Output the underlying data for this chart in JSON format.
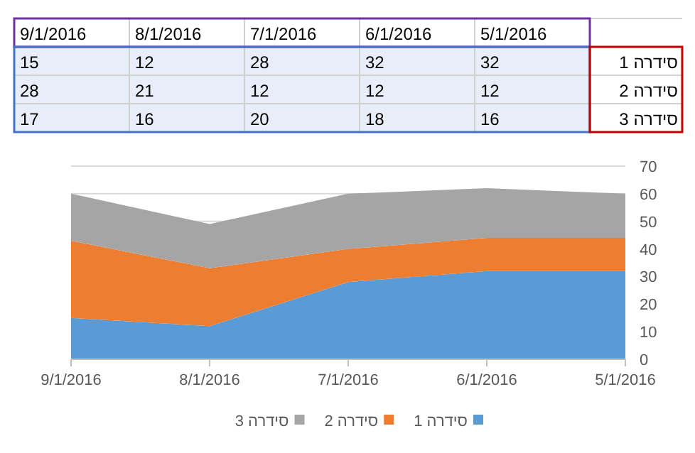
{
  "chart_data": {
    "type": "area",
    "stacked": true,
    "categories": [
      "9/1/2016",
      "8/1/2016",
      "7/1/2016",
      "6/1/2016",
      "5/1/2016"
    ],
    "series": [
      {
        "name": "סידרה 1",
        "color": "#5b9bd5",
        "values": [
          15,
          12,
          28,
          32,
          32
        ]
      },
      {
        "name": "סידרה 2",
        "color": "#ed7d31",
        "values": [
          28,
          21,
          12,
          12,
          12
        ]
      },
      {
        "name": "סידרה 3",
        "color": "#a5a5a5",
        "values": [
          17,
          16,
          20,
          18,
          16
        ]
      }
    ],
    "ylim": [
      0,
      70
    ],
    "yticks": [
      0,
      10,
      20,
      30,
      40,
      50,
      60,
      70
    ],
    "grid": "y",
    "legend": "bottom",
    "annotations": [
      "15",
      "12",
      "28",
      "32",
      "32",
      "28",
      "21",
      "12",
      "12",
      "12",
      "17",
      "16",
      "20",
      "18",
      "16"
    ]
  }
}
